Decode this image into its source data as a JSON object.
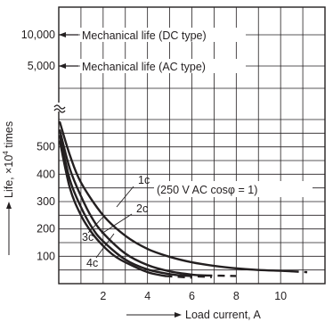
{
  "chart_data": {
    "type": "line",
    "xlabel": "Load current, A",
    "ylabel_prefix": "Life, ×10",
    "ylabel_exp": "4",
    "ylabel_suffix": " times",
    "x_ticks": [
      2,
      4,
      6,
      8,
      10
    ],
    "xlim": [
      0,
      12
    ],
    "y_ticks": [
      100,
      200,
      300,
      400,
      500
    ],
    "y_upper_ticks": [
      {
        "value": 5000,
        "label": "5,000"
      },
      {
        "value": 10000,
        "label": "10,000"
      }
    ],
    "ylim": [
      0,
      600
    ],
    "y_axis_break": true,
    "grid": true,
    "condition_label": "(250 V AC cosφ = 1)",
    "mechanical_life": [
      {
        "label": "Mechanical life (DC type)",
        "value": 10000
      },
      {
        "label": "Mechanical life (AC type)",
        "value": 5000
      }
    ],
    "series": [
      {
        "name": "1c",
        "x": [
          0.05,
          0.5,
          1,
          2,
          3,
          4,
          5,
          6,
          7,
          8,
          9,
          10,
          10.5
        ],
        "y": [
          590,
          470,
          370,
          250,
          175,
          127,
          98,
          78,
          65,
          56,
          50,
          47,
          45
        ],
        "dashed_x": [
          10.5,
          11.2
        ],
        "dashed_y": [
          45,
          42
        ]
      },
      {
        "name": "2c",
        "x": [
          0.05,
          0.5,
          1,
          1.5,
          2,
          3,
          4,
          5,
          6,
          6.6
        ],
        "y": [
          560,
          420,
          320,
          240,
          185,
          110,
          68,
          45,
          33,
          30
        ],
        "dashed_x": [
          6.6,
          8
        ],
        "dashed_y": [
          30,
          28
        ]
      },
      {
        "name": "3c",
        "x": [
          0.05,
          0.5,
          1,
          1.5,
          2,
          3,
          4,
          5,
          5.7
        ],
        "y": [
          540,
          380,
          280,
          205,
          155,
          88,
          52,
          35,
          29
        ],
        "dashed_x": [
          5.7,
          6.9
        ],
        "dashed_y": [
          29,
          24
        ]
      },
      {
        "name": "4c",
        "x": [
          0.05,
          0.5,
          1,
          1.5,
          2,
          2.5,
          3,
          4,
          4.8
        ],
        "y": [
          520,
          350,
          250,
          185,
          138,
          102,
          78,
          42,
          28
        ],
        "dashed_x": [
          4.8,
          6
        ],
        "dashed_y": [
          28,
          22
        ]
      }
    ]
  }
}
